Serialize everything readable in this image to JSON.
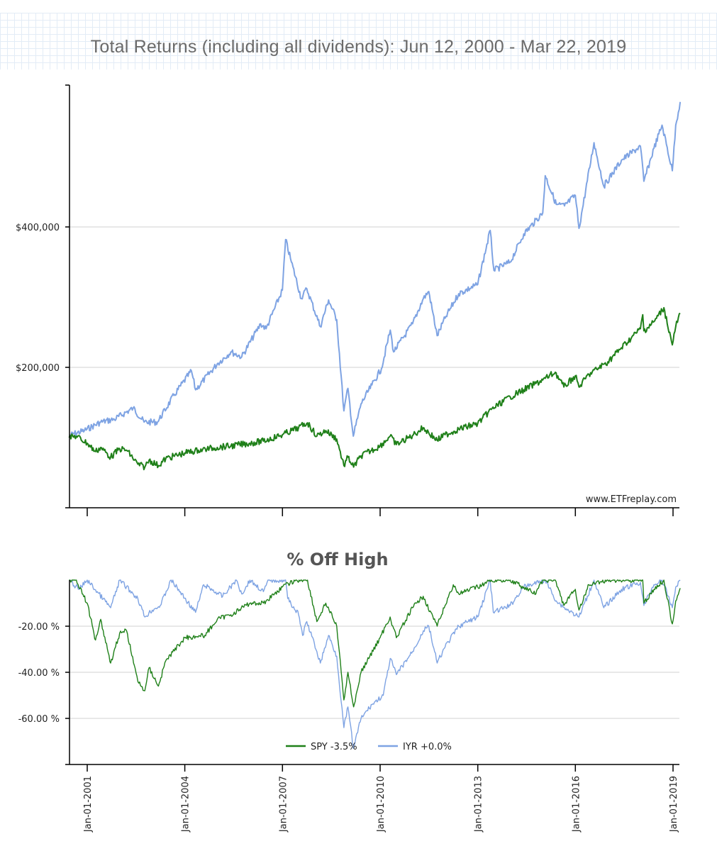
{
  "chart_data": [
    {
      "type": "line",
      "title": "Total Returns (including all dividends): Jun 12, 2000 - Mar 22, 2019",
      "ylabel": "",
      "xlabel": "",
      "ylim": [
        0,
        600000
      ],
      "yticks": [
        200000,
        400000
      ],
      "ytick_labels": [
        "$200,000",
        "$400,000"
      ],
      "grid": true,
      "watermark": "www.ETFreplay.com",
      "series": [
        {
          "name": "IYR",
          "color": "#7ea3e3",
          "points": [
            [
              "2000-06-12",
              103000
            ],
            [
              "2000-12-01",
              110000
            ],
            [
              "2001-06-01",
              122000
            ],
            [
              "2001-11-01",
              126000
            ],
            [
              "2002-06-01",
              142000
            ],
            [
              "2002-10-01",
              122000
            ],
            [
              "2003-03-01",
              122000
            ],
            [
              "2003-09-01",
              160000
            ],
            [
              "2004-03-15",
              195000
            ],
            [
              "2004-05-01",
              168000
            ],
            [
              "2004-12-31",
              205000
            ],
            [
              "2005-06-01",
              222000
            ],
            [
              "2005-10-01",
              215000
            ],
            [
              "2006-05-01",
              262000
            ],
            [
              "2006-07-01",
              255000
            ],
            [
              "2006-12-31",
              310000
            ],
            [
              "2007-02-05",
              382000
            ],
            [
              "2007-04-01",
              355000
            ],
            [
              "2007-08-01",
              298000
            ],
            [
              "2007-10-01",
              312000
            ],
            [
              "2008-03-01",
              258000
            ],
            [
              "2008-06-01",
              296000
            ],
            [
              "2008-09-01",
              268000
            ],
            [
              "2008-11-20",
              138000
            ],
            [
              "2009-01-05",
              170000
            ],
            [
              "2009-03-06",
              102000
            ],
            [
              "2009-06-01",
              148000
            ],
            [
              "2009-10-01",
              175000
            ],
            [
              "2010-01-15",
              198000
            ],
            [
              "2010-04-25",
              253000
            ],
            [
              "2010-06-01",
              222000
            ],
            [
              "2010-12-31",
              262000
            ],
            [
              "2011-05-01",
              298000
            ],
            [
              "2011-07-01",
              308000
            ],
            [
              "2011-10-03",
              245000
            ],
            [
              "2011-12-31",
              270000
            ],
            [
              "2012-06-01",
              305000
            ],
            [
              "2012-12-31",
              318000
            ],
            [
              "2013-05-20",
              395000
            ],
            [
              "2013-07-01",
              338000
            ],
            [
              "2013-12-31",
              350000
            ],
            [
              "2014-06-01",
              390000
            ],
            [
              "2014-12-31",
              420000
            ],
            [
              "2015-01-28",
              473000
            ],
            [
              "2015-06-01",
              432000
            ],
            [
              "2015-09-01",
              430000
            ],
            [
              "2015-12-31",
              445000
            ],
            [
              "2016-02-11",
              398000
            ],
            [
              "2016-07-28",
              520000
            ],
            [
              "2016-11-15",
              458000
            ],
            [
              "2017-06-01",
              495000
            ],
            [
              "2017-12-31",
              515000
            ],
            [
              "2018-02-08",
              465000
            ],
            [
              "2018-06-01",
              512000
            ],
            [
              "2018-08-31",
              545000
            ],
            [
              "2018-12-24",
              480000
            ],
            [
              "2019-01-31",
              545000
            ],
            [
              "2019-03-22",
              578000
            ]
          ]
        },
        {
          "name": "SPY",
          "color": "#1f8019",
          "points": [
            [
              "2000-06-12",
              100000
            ],
            [
              "2000-09-01",
              102000
            ],
            [
              "2000-12-31",
              92000
            ],
            [
              "2001-04-04",
              80000
            ],
            [
              "2001-06-01",
              86000
            ],
            [
              "2001-09-21",
              72000
            ],
            [
              "2001-12-31",
              84000
            ],
            [
              "2002-03-19",
              82000
            ],
            [
              "2002-07-23",
              62000
            ],
            [
              "2002-10-09",
              58000
            ],
            [
              "2002-11-27",
              68000
            ],
            [
              "2003-03-11",
              60000
            ],
            [
              "2003-06-01",
              70000
            ],
            [
              "2003-12-31",
              78000
            ],
            [
              "2004-06-01",
              82000
            ],
            [
              "2004-12-31",
              86000
            ],
            [
              "2005-06-01",
              88000
            ],
            [
              "2005-12-31",
              92000
            ],
            [
              "2006-06-01",
              95000
            ],
            [
              "2006-12-31",
              104000
            ],
            [
              "2007-07-01",
              114000
            ],
            [
              "2007-10-09",
              121000
            ],
            [
              "2008-01-22",
              102000
            ],
            [
              "2008-05-01",
              110000
            ],
            [
              "2008-09-01",
              98000
            ],
            [
              "2008-11-20",
              60000
            ],
            [
              "2009-01-05",
              72000
            ],
            [
              "2009-03-09",
              58000
            ],
            [
              "2009-06-01",
              74000
            ],
            [
              "2009-12-31",
              88000
            ],
            [
              "2010-04-23",
              102000
            ],
            [
              "2010-07-02",
              90000
            ],
            [
              "2010-12-31",
              103000
            ],
            [
              "2011-04-29",
              114000
            ],
            [
              "2011-10-03",
              96000
            ],
            [
              "2011-12-31",
              104000
            ],
            [
              "2012-06-01",
              112000
            ],
            [
              "2012-12-31",
              120000
            ],
            [
              "2013-06-01",
              140000
            ],
            [
              "2013-12-31",
              158000
            ],
            [
              "2014-06-01",
              168000
            ],
            [
              "2014-12-31",
              182000
            ],
            [
              "2015-05-21",
              193000
            ],
            [
              "2015-08-25",
              172000
            ],
            [
              "2015-12-31",
              188000
            ],
            [
              "2016-02-11",
              172000
            ],
            [
              "2016-06-01",
              190000
            ],
            [
              "2016-12-31",
              208000
            ],
            [
              "2017-06-01",
              228000
            ],
            [
              "2017-12-31",
              255000
            ],
            [
              "2018-01-26",
              275000
            ],
            [
              "2018-02-08",
              252000
            ],
            [
              "2018-06-01",
              265000
            ],
            [
              "2018-09-20",
              285000
            ],
            [
              "2018-12-24",
              232000
            ],
            [
              "2019-01-31",
              258000
            ],
            [
              "2019-03-22",
              277000
            ]
          ]
        }
      ]
    },
    {
      "type": "line",
      "title": "% Off High",
      "ylim": [
        -80,
        0
      ],
      "yticks": [
        -20,
        -40,
        -60
      ],
      "ytick_labels": [
        "-20.00 %",
        "-40.00 %",
        "-60.00 %"
      ],
      "grid": true,
      "legend_position": "bottom-center",
      "legend": [
        "SPY -3.5%",
        "IYR +0.0%"
      ],
      "xtick_labels": [
        "Jan-01-2001",
        "Jan-01-2004",
        "Jan-01-2007",
        "Jan-01-2010",
        "Jan-01-2013",
        "Jan-01-2016",
        "Jan-01-2019"
      ],
      "series": [
        {
          "name": "IYR",
          "color": "#7ea3e3",
          "points": [
            [
              "2000-06-12",
              0
            ],
            [
              "2000-10-01",
              -4
            ],
            [
              "2001-01-01",
              0
            ],
            [
              "2001-09-21",
              -12
            ],
            [
              "2002-01-01",
              0
            ],
            [
              "2002-07-23",
              -8
            ],
            [
              "2002-10-09",
              -16
            ],
            [
              "2003-01-01",
              -13
            ],
            [
              "2003-04-01",
              -11
            ],
            [
              "2003-08-01",
              0
            ],
            [
              "2004-04-30",
              -14
            ],
            [
              "2004-08-01",
              -2
            ],
            [
              "2005-03-01",
              -7
            ],
            [
              "2005-08-01",
              0
            ],
            [
              "2005-10-01",
              -6
            ],
            [
              "2006-01-01",
              0
            ],
            [
              "2006-06-01",
              -5
            ],
            [
              "2006-08-01",
              0
            ],
            [
              "2007-02-05",
              0
            ],
            [
              "2007-03-01",
              -8
            ],
            [
              "2007-07-01",
              -15
            ],
            [
              "2007-08-15",
              -24
            ],
            [
              "2007-10-01",
              -18
            ],
            [
              "2008-01-22",
              -31
            ],
            [
              "2008-03-01",
              -36
            ],
            [
              "2008-06-01",
              -24
            ],
            [
              "2008-09-01",
              -33
            ],
            [
              "2008-11-20",
              -64
            ],
            [
              "2009-01-05",
              -55
            ],
            [
              "2009-03-06",
              -73
            ],
            [
              "2009-06-01",
              -60
            ],
            [
              "2009-10-01",
              -54
            ],
            [
              "2010-02-05",
              -50
            ],
            [
              "2010-04-25",
              -34
            ],
            [
              "2010-07-02",
              -41
            ],
            [
              "2010-12-31",
              -31
            ],
            [
              "2011-05-01",
              -22
            ],
            [
              "2011-07-01",
              -20
            ],
            [
              "2011-10-03",
              -36
            ],
            [
              "2011-12-31",
              -29
            ],
            [
              "2012-06-01",
              -20
            ],
            [
              "2012-12-31",
              -16
            ],
            [
              "2013-05-20",
              0
            ],
            [
              "2013-06-24",
              -14
            ],
            [
              "2013-12-31",
              -11
            ],
            [
              "2014-06-01",
              -3
            ],
            [
              "2015-01-28",
              0
            ],
            [
              "2015-06-01",
              -9
            ],
            [
              "2015-09-01",
              -12
            ],
            [
              "2016-02-11",
              -16
            ],
            [
              "2016-07-28",
              0
            ],
            [
              "2016-11-15",
              -12
            ],
            [
              "2017-06-01",
              -4
            ],
            [
              "2017-12-31",
              -1
            ],
            [
              "2018-02-08",
              -11
            ],
            [
              "2018-06-01",
              -2
            ],
            [
              "2018-08-31",
              0
            ],
            [
              "2018-12-24",
              -12
            ],
            [
              "2019-01-31",
              -3
            ],
            [
              "2019-03-22",
              0
            ]
          ]
        },
        {
          "name": "SPY",
          "color": "#1f8019",
          "points": [
            [
              "2000-06-12",
              0
            ],
            [
              "2000-09-01",
              0
            ],
            [
              "2000-12-31",
              -10
            ],
            [
              "2001-04-04",
              -26
            ],
            [
              "2001-06-01",
              -17
            ],
            [
              "2001-09-21",
              -36
            ],
            [
              "2001-12-31",
              -23
            ],
            [
              "2002-03-19",
              -22
            ],
            [
              "2002-07-23",
              -44
            ],
            [
              "2002-10-09",
              -48
            ],
            [
              "2002-11-27",
              -38
            ],
            [
              "2003-03-11",
              -46
            ],
            [
              "2003-06-01",
              -35
            ],
            [
              "2003-12-31",
              -25
            ],
            [
              "2004-08-12",
              -24
            ],
            [
              "2004-12-31",
              -17
            ],
            [
              "2005-06-01",
              -15
            ],
            [
              "2005-12-31",
              -10
            ],
            [
              "2006-06-01",
              -10
            ],
            [
              "2006-12-31",
              -3
            ],
            [
              "2007-05-30",
              0
            ],
            [
              "2007-10-09",
              0
            ],
            [
              "2008-01-22",
              -18
            ],
            [
              "2008-05-01",
              -10
            ],
            [
              "2008-09-01",
              -20
            ],
            [
              "2008-11-20",
              -52
            ],
            [
              "2009-01-05",
              -40
            ],
            [
              "2009-03-09",
              -55
            ],
            [
              "2009-06-01",
              -40
            ],
            [
              "2009-12-31",
              -25
            ],
            [
              "2010-04-23",
              -16
            ],
            [
              "2010-07-02",
              -25
            ],
            [
              "2010-12-31",
              -12
            ],
            [
              "2011-04-29",
              -7
            ],
            [
              "2011-10-03",
              -20
            ],
            [
              "2011-12-31",
              -11
            ],
            [
              "2012-04-01",
              -2
            ],
            [
              "2012-06-01",
              -6
            ],
            [
              "2012-12-31",
              -3
            ],
            [
              "2013-06-01",
              0
            ],
            [
              "2013-12-31",
              0
            ],
            [
              "2014-10-15",
              -6
            ],
            [
              "2014-12-31",
              0
            ],
            [
              "2015-05-21",
              0
            ],
            [
              "2015-08-25",
              -11
            ],
            [
              "2015-12-31",
              -4
            ],
            [
              "2016-02-11",
              -13
            ],
            [
              "2016-06-01",
              -2
            ],
            [
              "2016-12-31",
              0
            ],
            [
              "2017-12-31",
              0
            ],
            [
              "2018-01-26",
              0
            ],
            [
              "2018-02-08",
              -10
            ],
            [
              "2018-06-01",
              -4
            ],
            [
              "2018-09-20",
              0
            ],
            [
              "2018-12-24",
              -19
            ],
            [
              "2019-01-31",
              -9
            ],
            [
              "2019-03-22",
              -3.5
            ]
          ]
        }
      ]
    }
  ]
}
